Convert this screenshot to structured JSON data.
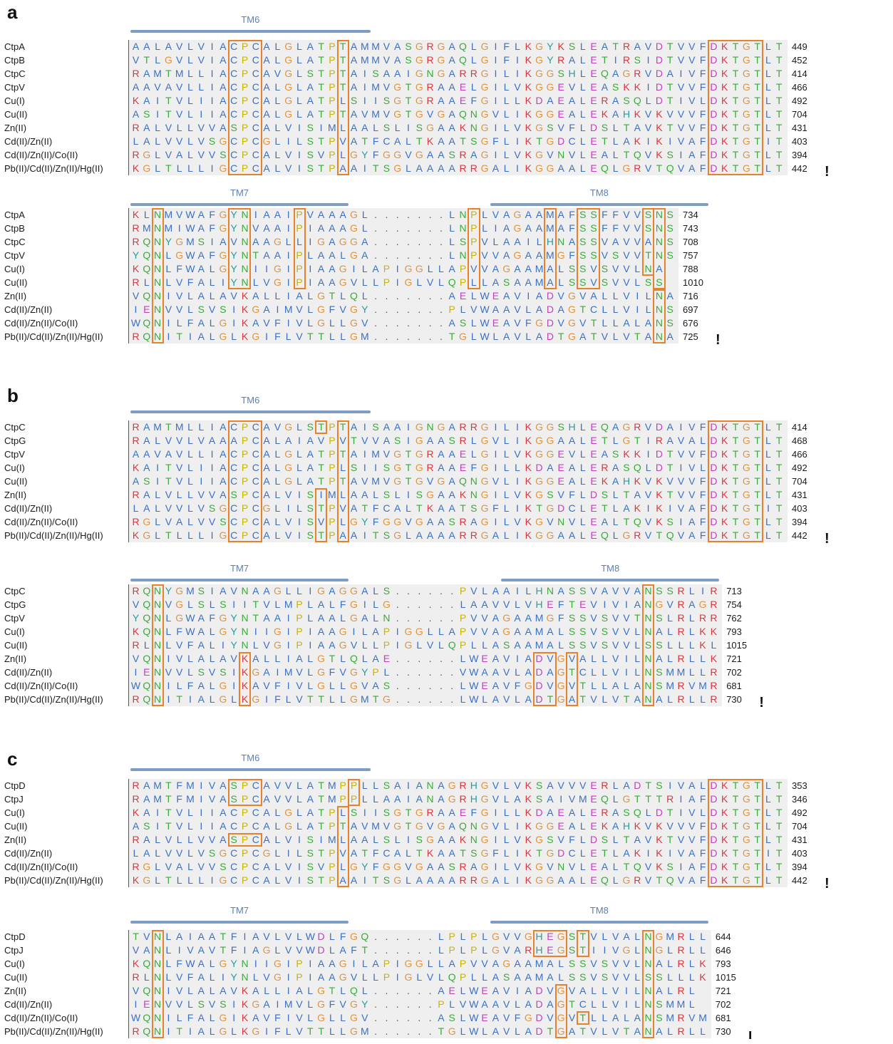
{
  "colors": {
    "box": "#e8812c",
    "tm_bar": "#7f9cc7",
    "tm_label": "#5b7fb6",
    "bg": "#efefef"
  },
  "panels": [
    {
      "letter": "a",
      "blocks": [
        {
          "tm": [
            {
              "label": "TM6",
              "start": 0,
              "end": 22
            }
          ],
          "names": [
            "CtpA",
            "CtpB",
            "CtpC",
            "CtpV",
            "Cu(I)",
            "Cu(II)",
            "Zn(II)",
            "Cd(II)/Zn(II)",
            "Cd(II)/Zn(II)/Co(II)",
            "Pb(II)/Cd(II)/Zn(II)/Hg(II)"
          ],
          "seqs": [
            "AALAVLVIACPCALGLATPTAMMVASGRGAQLGIFLKGYKSLEATRAVDTVVFDKTGTLT",
            "VTLGVLVIACPCALGLATPTAMMVASGRGAQLGIFIKGYRALETIRSIDTVVFDKTGTLT",
            "RAMTMLLIACPCAVGLSTPTAISAAIGNGARRGILIKGGSHLEQAGRVDAIVFDKTGTLT",
            "AAVAVLLIACPCALGLATPTAIMVGTGRAAELGILVKGGEVLEASKKIDTVVFDKTGTLT",
            "KAITVLIIACPCALGLATPLSIISGTGRAAEFGILLKDAEALERASQLDTIVLDKTGTLT",
            "ASITVLIIACPCALGLATPTAVMVGTGVGAQNGVLIKGGEALEKAHKVKVVVFDKTGTLT",
            "RALVLLVVASPCALVISIMLAALSLISGAAKNGILVKGSVFLDSLTAVKTVVFDKTGTLT",
            "LALVVLVSGCPCGLILSTPVATFCALTKAATSGFLIKTGDCLETLAKIKIVAFDKTGTIT",
            "RGLVALVVSCPCALVISVPLGYFGGVGAASRAGILVKGVNVLEALTQVKSIAFDKTGTLT",
            "KGLTLLLIGCPCALVISTPAAITSGLAAAARRGALIKGGAALEQLGRVTQVAFDKTGTLT"
          ],
          "ends": [
            "449",
            "452",
            "414",
            "466",
            "492",
            "704",
            "431",
            "403",
            "394",
            "442"
          ],
          "boxes": [
            [
              0,
              9,
              9,
              11
            ],
            [
              0,
              9,
              19,
              19
            ],
            [
              0,
              9,
              53,
              57
            ]
          ],
          "tick": "!"
        },
        {
          "tm": [
            {
              "label": "TM7",
              "start": 0,
              "end": 20
            },
            {
              "label": "TM8",
              "start": 33,
              "end": 53
            }
          ],
          "names": [
            "CtpA",
            "CtpB",
            "CtpC",
            "CtpV",
            "Cu(I)",
            "Cu(II)",
            "Zn(II)",
            "Cd(II)/Zn(II)",
            "Cd(II)/Zn(II)/Co(II)",
            "Pb(II)/Cd(II)/Zn(II)/Hg(II)"
          ],
          "seqs": [
            "KLNMVWAFGYNIAAIPVAAAGL.......LNPLVAGAAMAFSSFFVVSNS",
            "RMNMIWAFGYNVAAIPIAAAGL.......LNPLIAGAAMAFSSFFVVSNS",
            "RQNYGMSIAVNAAGLLIGAGGA.......LSPVLAAILHNASSVAVVANS",
            "YQNLGWAFGYNTAAIPLAALGA.......LNPVVAGAAMGFSSVSVVTNS",
            "KQNLFWALGYNIIGIPIAAGILAPIGGLLAPVVAGAAMALSSVSVVLNA",
            "RLNLVFALIYNLVGIPIAAGVLLPIGLVLQPLLASAAMALSSVSVVLSS",
            "VQNIVLALAVKALLIALGTLQL.......AELWEAVIADVGVALLVILNA",
            "IENVVLSVSIKGAIMVLGFVGY.......PLVWAAVLADAGTCLLVILNS",
            "WQNILFALGIKAVFIVLGLLGV.......ASLWEAVFGDVGVTLLALANS",
            "RQNITIALGLKGIFLVTTLLGM.......TGLWLAVLADTGATVLVTANA"
          ],
          "ends": [
            "734",
            "743",
            "708",
            "757",
            "788",
            "1010",
            "716",
            "697",
            "676",
            "725"
          ],
          "boxes": [
            [
              0,
              9,
              2,
              2
            ],
            [
              0,
              5,
              9,
              10
            ],
            [
              0,
              5,
              15,
              15
            ],
            [
              0,
              5,
              31,
              31
            ],
            [
              0,
              5,
              38,
              38
            ],
            [
              0,
              5,
              41,
              42
            ],
            [
              0,
              4,
              47,
              47
            ],
            [
              0,
              5,
              48,
              48
            ],
            [
              6,
              9,
              48,
              48
            ]
          ],
          "tick": "!"
        }
      ]
    },
    {
      "letter": "b",
      "blocks": [
        {
          "tm": [
            {
              "label": "TM6",
              "start": 0,
              "end": 22
            }
          ],
          "names": [
            "CtpC",
            "CtpG",
            "CtpV",
            "Cu(I)",
            "Cu(II)",
            "Zn(II)",
            "Cd(II)/Zn(II)",
            "Cd(II)/Zn(II)/Co(II)",
            "Pb(II)/Cd(II)/Zn(II)/Hg(II)"
          ],
          "seqs": [
            "RAMTMLLIACPCAVGLSTPTAISAAIGNGARRGILIKGGSHLEQAGRVDAIVFDKTGTLT",
            "RALVVLVAAAPCALAIAVPVTVVASIGAASRLGVLIKGGAALETLGTIRAVALDKTGTLT",
            "AAVAVLLIACPCALGLATPTAIMVGTGRAAELGILVKGGEVLEASKKIDTVVFDKTGTLT",
            "KAITVLIIACPCALGLATPLSIISGTGRAAEFGILLKDAEALERASQLDTIVLDKTGTLT",
            "ASITVLIIACPCALGLATPTAVMVGTGVGAQNGVLIKGGEALEKAHKVKVVVFDKTGTLT",
            "RALVLLVVASPCALVISIMLAALSLISGAAKNGILVKGSVFLDSLTAVKTVVFDKTGTLT",
            "LALVVLVSGCPCGLILSTPVATFCALTKAATSGFLIKTGDCLETLAKIKIVAFDKTGTIT",
            "RGLVALVVSCPCALVISVPLGYFGGVGAASRAGILVKGVNVLEALTQVKSIAFDKTGTLT",
            "KGLTLLLIGCPCALVISTPAAITSGLAAAARRGALIKGGAALEQLGRVTQVAFDKTGTLT"
          ],
          "ends": [
            "414",
            "468",
            "466",
            "492",
            "704",
            "431",
            "403",
            "394",
            "442"
          ],
          "boxes": [
            [
              0,
              8,
              9,
              11
            ],
            [
              0,
              0,
              17,
              17
            ],
            [
              5,
              8,
              17,
              17
            ],
            [
              0,
              8,
              19,
              19
            ],
            [
              0,
              8,
              53,
              57
            ]
          ],
          "tick": "!"
        },
        {
          "tm": [
            {
              "label": "TM7",
              "start": 0,
              "end": 20
            },
            {
              "label": "TM8",
              "start": 34,
              "end": 54
            }
          ],
          "names": [
            "CtpC",
            "CtpG",
            "CtpV",
            "Cu(I)",
            "Cu(II)",
            "Zn(II)",
            "Cd(II)/Zn(II)",
            "Cd(II)/Zn(II)/Co(II)",
            "Pb(II)/Cd(II)/Zn(II)/Hg(II)"
          ],
          "seqs": [
            "RQNYGMSIAVNAAGLLIGAGGALS......PVLAAILHNASSVAVVANSSRLIR",
            "VQNVGLSLSIITVLMPLALFGILG......LAAVVLVHEFTEVIVIANGVRAGR",
            "YQNLGWAFGYNTAAIPLAALGALN......PVVAGAAMGFSSVSVVTNSLRLRR",
            "KQNLFWALGYNIIGIPIAAGILAPIGGLLAPVVAGAAMALSSVSVVLNALRLKK",
            "RLNLVFALIYNLVGIPIAAGVLLPIGLVLQPLLASAAMALSSVSVVLSSLLLKL",
            "VQNIVLALAVKALLIALGTLQLAE......LWEAVIADVGVALLVILNALRLLK",
            "IENVVLSVSIKGAIMVLGFVGYPL......VWAAVLADAGTCLLVILNSMMLLR",
            "WQNILFALGIKAVFIVLGLLGVAS......LWEAVFGDVGVTLLALANSMRVMR",
            "RQNITIALGLKGIFLVTTLLGMTG......LWLAVLADTGATVLVTANALRLLR"
          ],
          "ends": [
            "713",
            "754",
            "762",
            "793",
            "1015",
            "721",
            "702",
            "681",
            "730"
          ],
          "boxes": [
            [
              0,
              8,
              2,
              2
            ],
            [
              5,
              8,
              10,
              10
            ],
            [
              5,
              8,
              37,
              38
            ],
            [
              5,
              8,
              40,
              40
            ],
            [
              0,
              8,
              47,
              47
            ]
          ],
          "tick": "!"
        }
      ]
    },
    {
      "letter": "c",
      "blocks": [
        {
          "tm": [
            {
              "label": "TM6",
              "start": 0,
              "end": 22
            }
          ],
          "names": [
            "CtpD",
            "CtpJ",
            "Cu(I)",
            "Cu(II)",
            "Zn(II)",
            "Cd(II)/Zn(II)",
            "Cd(II)/Zn(II)/Co(II)",
            "Pb(II)/Cd(II)/Zn(II)/Hg(II)"
          ],
          "seqs": [
            "RAMTFMIVASPCAVVLATMPPLLSAIANAGRHGVLVKSAVVVERLADTSIVALDKTGTLT",
            "RAMTFMIVASPCAVVLATMPPLLAAIANAGRHGVLAKSAIVMEQLGTTTRIAFDKTGTLT",
            "KAITVLIIACPCALGLATPLSIISGTGRAAEFGILLKDAEALERASQLDTIVLDKTGTLT",
            "ASITVLIIACPCALGLATPTAVMVGTGVGAQNGVLIKGGEALEKAHKVKVVVFDKTGTLT",
            "RALVLLVVASPCALVISIMLAALSLISGAAKNGILVKGSVFLDSLTAVKTVVFDKTGTLT",
            "LALVVLVSGCPCGLILSTPVATFCALTKAATSGFLIKTGDCLETLAKIKIVAFDKTGTIT",
            "RGLVALVVSCPCALVISVPLGYFGGVGAASRAGILVKGVNVLEALTQVKSIAFDKTGTLT",
            "KGLTLLLIGCPCALVISTPAAITSGLAAAARRGALIKGGAALEQLGRVTQVAFDKTGTLT"
          ],
          "ends": [
            "353",
            "346",
            "492",
            "704",
            "431",
            "403",
            "394",
            "442"
          ],
          "boxes": [
            [
              0,
              1,
              9,
              11
            ],
            [
              4,
              4,
              9,
              11
            ],
            [
              0,
              1,
              20,
              20
            ],
            [
              2,
              7,
              19,
              19
            ],
            [
              0,
              7,
              53,
              57
            ]
          ],
          "tick": "!"
        },
        {
          "tm": [
            {
              "label": "TM7",
              "start": 0,
              "end": 20
            },
            {
              "label": "TM8",
              "start": 33,
              "end": 53
            }
          ],
          "names": [
            "CtpD",
            "CtpJ",
            "Cu(I)",
            "Cu(II)",
            "Zn(II)",
            "Cd(II)/Zn(II)",
            "Cd(II)/Zn(II)/Co(II)",
            "Pb(II)/Cd(II)/Zn(II)/Hg(II)"
          ],
          "seqs": [
            "TVNLAIAATFIAVLVLWDLFGQ......LPLPLGVVGHEGSTVLVALNGMRLL",
            "VANLIVAVTFIAGLVVWDLAFT......LPLPLGVARHEGSTIIVGLNGLRLL",
            "KQNLFWALGYNIIGIPIAAGILAPIGGLLAPVVAGAAMALSSVSVVLNALRLK",
            "RLNLVFALIYNLVGIPIAAGVLLPIGLVLQPLLASAAMALSSVSVVLSSLLLK",
            "VQNIVLALAVKALLIALGTLQL......AELWEAVIADVGVALLVILNALRL",
            "IENVVLSVSIKGAIMVLGFVGY......PLVWAAVLADAGTCLLVILNSMML",
            "WQNILFALGIKAVFIVLGLLGV......ASLWEAVFGDVGVTLLALANSMRVM",
            "RQNITIALGLKGIFLVTTLLGM......TGLWLAVLADTGATVLVTANALRLL"
          ],
          "ends": [
            "644",
            "646",
            "793",
            "1015",
            "721",
            "702",
            "681",
            "730"
          ],
          "boxes": [
            [
              0,
              7,
              2,
              2
            ],
            [
              0,
              1,
              37,
              39
            ],
            [
              0,
              1,
              41,
              41
            ],
            [
              4,
              7,
              39,
              39
            ],
            [
              6,
              6,
              41,
              41
            ],
            [
              0,
              7,
              47,
              47
            ]
          ],
          "tick": "ı"
        }
      ]
    }
  ]
}
